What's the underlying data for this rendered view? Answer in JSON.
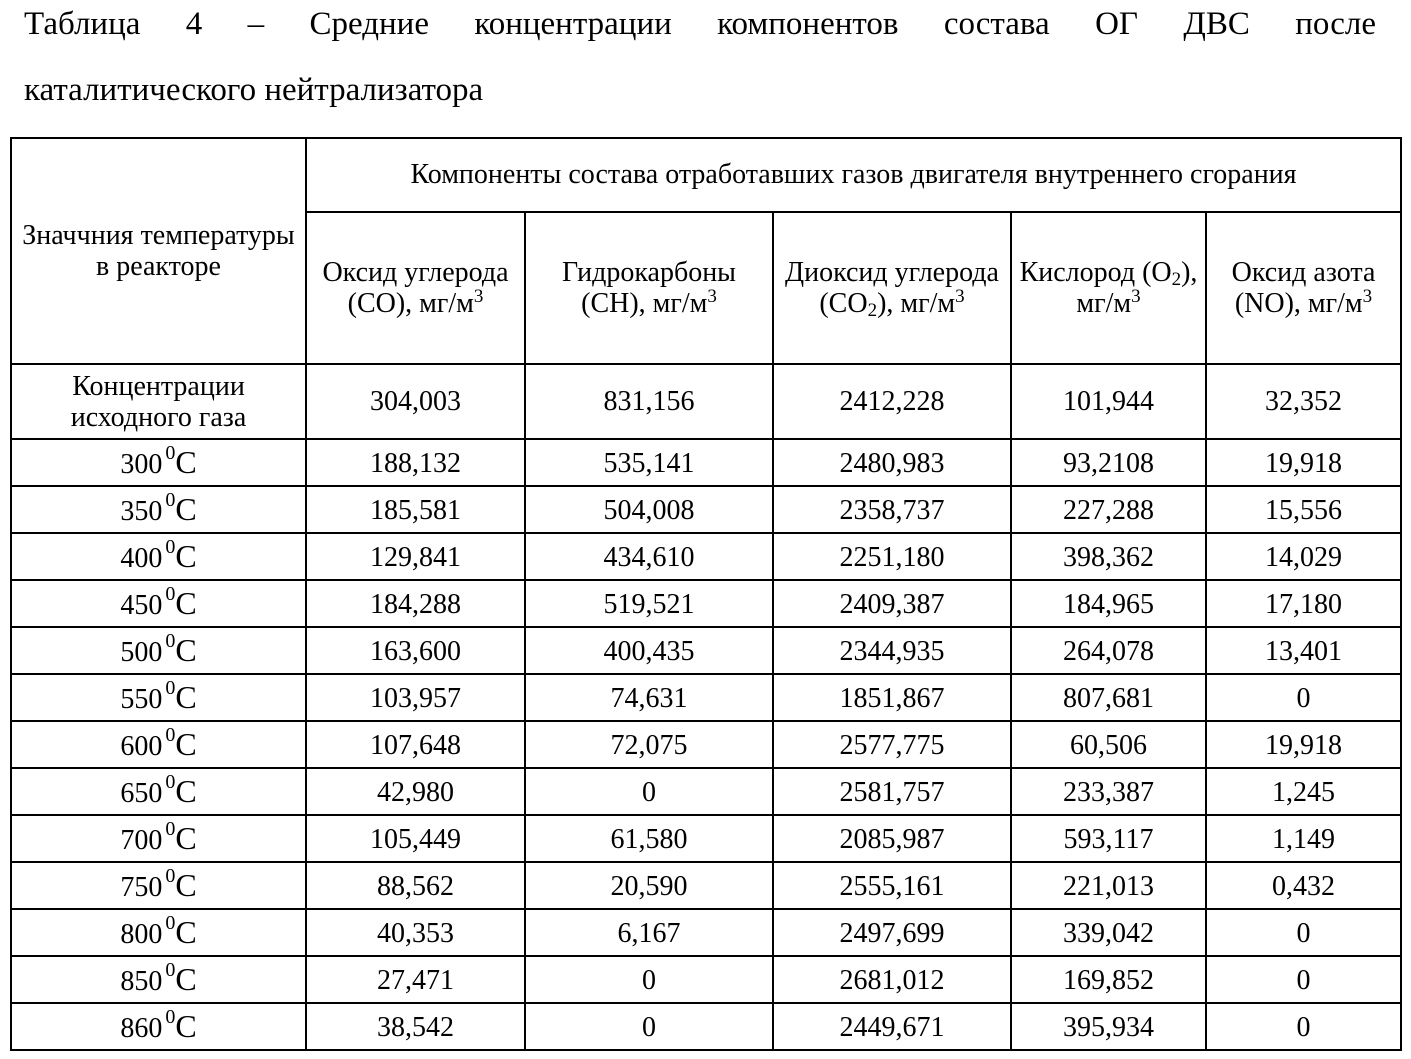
{
  "title": {
    "line1": "Таблица 4 – Средние концентрации компонентов состава ОГ ДВС после",
    "line2": "каталитического нейтрализатора"
  },
  "table": {
    "row_header": "Значчния температуры в реакторе",
    "group_header": "Компоненты состава отработавших газов двигателя внутреннего сгорания",
    "columns": [
      {
        "a": "Оксид углерода (CO), мг/м",
        "sub": "",
        "b": "",
        "sup": "3"
      },
      {
        "a": "Гидрокарбоны (CH), мг/м",
        "sub": "",
        "b": "",
        "sup": "3"
      },
      {
        "a": "Диоксид углерода (CO",
        "sub": "2",
        "b": "), мг/м",
        "sup": "3"
      },
      {
        "a": "Кислород (O",
        "sub": "2",
        "b": "), мг/м",
        "sup": "3"
      },
      {
        "a": "Оксид азота (NO), мг/м",
        "sub": "",
        "b": "",
        "sup": "3"
      }
    ],
    "initial": {
      "label": "Концентрации исходного газа",
      "values": [
        "304,003",
        "831,156",
        "2412,228",
        "101,944",
        "32,352"
      ]
    },
    "unit_sup": "0",
    "unit": "C",
    "rows": [
      {
        "temp": "300",
        "values": [
          "188,132",
          "535,141",
          "2480,983",
          "93,2108",
          "19,918"
        ]
      },
      {
        "temp": "350",
        "values": [
          "185,581",
          "504,008",
          "2358,737",
          "227,288",
          "15,556"
        ]
      },
      {
        "temp": "400",
        "values": [
          "129,841",
          "434,610",
          "2251,180",
          "398,362",
          "14,029"
        ]
      },
      {
        "temp": "450",
        "values": [
          "184,288",
          "519,521",
          "2409,387",
          "184,965",
          "17,180"
        ]
      },
      {
        "temp": "500",
        "values": [
          "163,600",
          "400,435",
          "2344,935",
          "264,078",
          "13,401"
        ]
      },
      {
        "temp": "550",
        "values": [
          "103,957",
          "74,631",
          "1851,867",
          "807,681",
          "0"
        ]
      },
      {
        "temp": "600",
        "values": [
          "107,648",
          "72,075",
          "2577,775",
          "60,506",
          "19,918"
        ]
      },
      {
        "temp": "650",
        "values": [
          "42,980",
          "0",
          "2581,757",
          "233,387",
          "1,245"
        ]
      },
      {
        "temp": "700",
        "values": [
          "105,449",
          "61,580",
          "2085,987",
          "593,117",
          "1,149"
        ]
      },
      {
        "temp": "750",
        "values": [
          "88,562",
          "20,590",
          "2555,161",
          "221,013",
          "0,432"
        ]
      },
      {
        "temp": "800",
        "values": [
          "40,353",
          "6,167",
          "2497,699",
          "339,042",
          "0"
        ]
      },
      {
        "temp": "850",
        "values": [
          "27,471",
          "0",
          "2681,012",
          "169,852",
          "0"
        ]
      },
      {
        "temp": "860",
        "values": [
          "38,542",
          "0",
          "2449,671",
          "395,934",
          "0"
        ]
      }
    ]
  }
}
